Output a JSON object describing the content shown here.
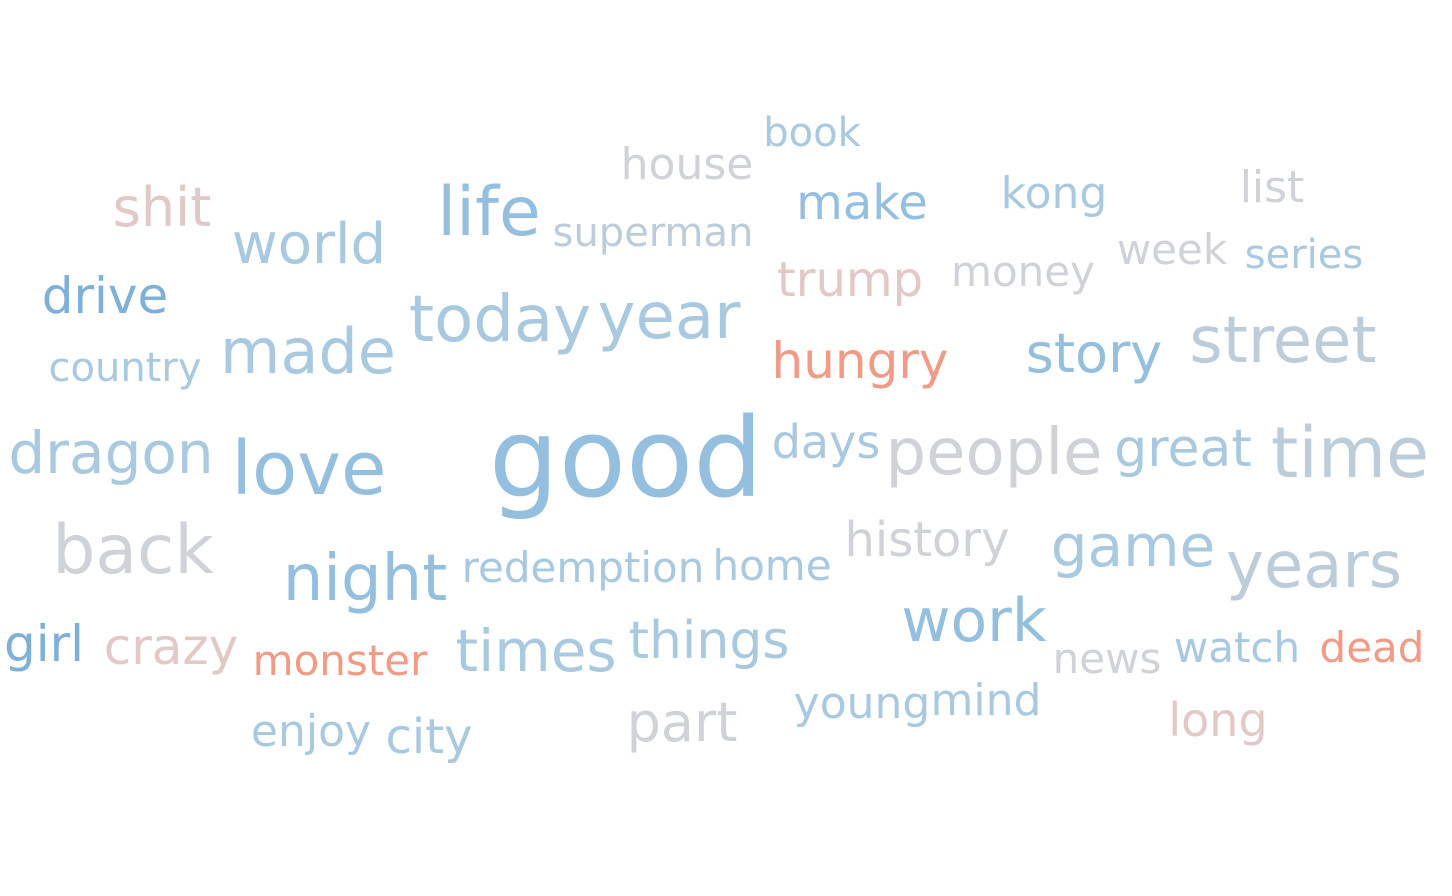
{
  "colors": {
    "blue_strong": "#7fb0d8",
    "blue": "#95bfdf",
    "blue_light": "#a8c9e0",
    "gray_blue": "#bccdd9",
    "gray": "#cfd2d6",
    "pink_light": "#e2c9c7",
    "salmon": "#f19b87"
  },
  "words": [
    {
      "text": "book",
      "color": "blue_light"
    },
    {
      "text": "house",
      "color": "gray"
    },
    {
      "text": "shit",
      "color": "pink_light"
    },
    {
      "text": "life",
      "color": "blue"
    },
    {
      "text": "superman",
      "color": "gray_blue"
    },
    {
      "text": "make",
      "color": "blue"
    },
    {
      "text": "kong",
      "color": "blue_light"
    },
    {
      "text": "list",
      "color": "gray"
    },
    {
      "text": "world",
      "color": "blue_light"
    },
    {
      "text": "week",
      "color": "gray"
    },
    {
      "text": "series",
      "color": "blue_light"
    },
    {
      "text": "trump",
      "color": "pink_light"
    },
    {
      "text": "money",
      "color": "gray"
    },
    {
      "text": "drive",
      "color": "blue_strong"
    },
    {
      "text": "today",
      "color": "blue_light"
    },
    {
      "text": "year",
      "color": "blue_light"
    },
    {
      "text": "made",
      "color": "blue_light"
    },
    {
      "text": "street",
      "color": "gray_blue"
    },
    {
      "text": "country",
      "color": "blue_light"
    },
    {
      "text": "hungry",
      "color": "salmon"
    },
    {
      "text": "story",
      "color": "blue"
    },
    {
      "text": "good",
      "color": "blue"
    },
    {
      "text": "dragon",
      "color": "blue_light"
    },
    {
      "text": "love",
      "color": "blue"
    },
    {
      "text": "days",
      "color": "blue_light"
    },
    {
      "text": "people",
      "color": "gray"
    },
    {
      "text": "great",
      "color": "blue_light"
    },
    {
      "text": "time",
      "color": "gray_blue"
    },
    {
      "text": "back",
      "color": "gray"
    },
    {
      "text": "history",
      "color": "gray"
    },
    {
      "text": "game",
      "color": "blue_light"
    },
    {
      "text": "night",
      "color": "blue"
    },
    {
      "text": "redemption",
      "color": "blue_light"
    },
    {
      "text": "home",
      "color": "blue_light"
    },
    {
      "text": "years",
      "color": "gray_blue"
    },
    {
      "text": "work",
      "color": "blue"
    },
    {
      "text": "girl",
      "color": "blue_strong"
    },
    {
      "text": "crazy",
      "color": "pink_light"
    },
    {
      "text": "monster",
      "color": "salmon"
    },
    {
      "text": "times",
      "color": "blue_light"
    },
    {
      "text": "things",
      "color": "blue_light"
    },
    {
      "text": "news",
      "color": "gray"
    },
    {
      "text": "watch",
      "color": "blue_light"
    },
    {
      "text": "dead",
      "color": "salmon"
    },
    {
      "text": "young",
      "color": "blue_light"
    },
    {
      "text": "mind",
      "color": "blue_light"
    },
    {
      "text": "part",
      "color": "gray"
    },
    {
      "text": "long",
      "color": "pink_light"
    },
    {
      "text": "enjoy",
      "color": "blue_light"
    },
    {
      "text": "city",
      "color": "blue_light"
    }
  ]
}
